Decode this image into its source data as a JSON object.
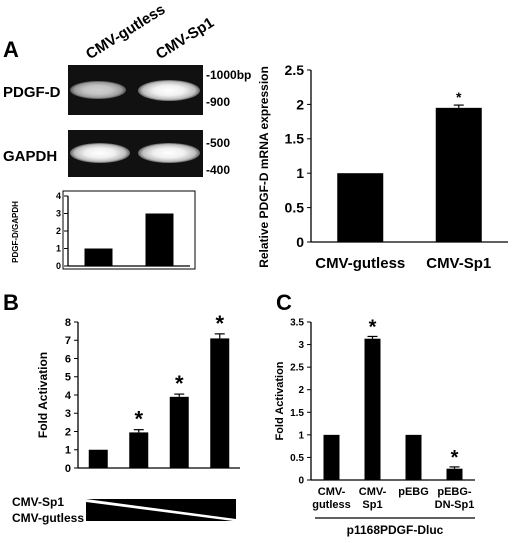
{
  "panels": {
    "a": {
      "letter": "A",
      "lanes": [
        "CMV-gutless",
        "CMV-Sp1"
      ],
      "gel1": {
        "label": "PDGF-D",
        "markers": [
          "-1000bp",
          "-900"
        ]
      },
      "gel2": {
        "label": "GAPDH",
        "markers": [
          "-500",
          "-400"
        ]
      }
    },
    "b": {
      "letter": "B",
      "ramp_labels": [
        "CMV-Sp1",
        "CMV-gutless"
      ]
    },
    "c": {
      "letter": "C",
      "group_label": "p1168PDGF-Dluc"
    }
  },
  "chart_data": [
    {
      "id": "a-inset",
      "type": "bar",
      "categories": [
        "CMV-gutless",
        "CMV-Sp1"
      ],
      "values": [
        1,
        3
      ],
      "ylabel": "PDGF-D/GAPDH",
      "ylim": [
        0,
        4
      ],
      "yticks": [
        "0",
        "1",
        "2",
        "3",
        "4"
      ],
      "show_category_labels": false
    },
    {
      "id": "a-right",
      "type": "bar",
      "categories": [
        "CMV-gutless",
        "CMV-Sp1"
      ],
      "values": [
        1,
        1.95
      ],
      "errors": [
        0,
        0.04
      ],
      "annotations": [
        "",
        "*"
      ],
      "ylabel": "Relative PDGF-D mRNA expression",
      "ylim": [
        0,
        2.5
      ],
      "yticks": [
        "0",
        "0.5",
        "1",
        "1.5",
        "2",
        "2.5"
      ]
    },
    {
      "id": "b",
      "type": "bar",
      "categories": [
        "1",
        "2",
        "3",
        "4"
      ],
      "values": [
        1,
        1.95,
        3.9,
        7.1
      ],
      "errors": [
        0,
        0.15,
        0.15,
        0.25
      ],
      "annotations": [
        "",
        "*",
        "*",
        "*"
      ],
      "ylabel": "Fold Activation",
      "ylim": [
        0,
        8
      ],
      "yticks": [
        "0",
        "1",
        "2",
        "3",
        "4",
        "5",
        "6",
        "7",
        "8"
      ],
      "show_category_labels": false
    },
    {
      "id": "c",
      "type": "bar",
      "categories": [
        "CMV-\ngutless",
        "CMV-\nSp1",
        "pEBG",
        "pEBG-\nDN-Sp1"
      ],
      "values": [
        1,
        3.13,
        1,
        0.25
      ],
      "errors": [
        0,
        0.05,
        0,
        0.04
      ],
      "annotations": [
        "",
        "*",
        "",
        "*"
      ],
      "ylabel": "Fold Activation",
      "ylim": [
        0,
        3.5
      ],
      "yticks": [
        "0",
        "0.5",
        "1",
        "1.5",
        "2",
        "2.5",
        "3",
        "3.5"
      ]
    }
  ]
}
